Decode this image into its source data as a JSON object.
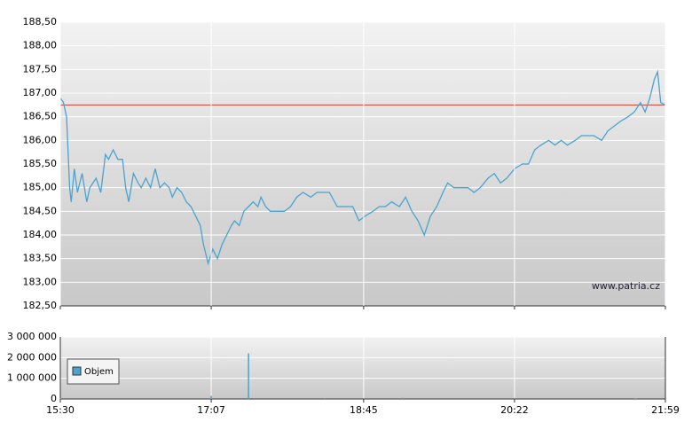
{
  "chart_data": [
    {
      "type": "line",
      "series": [
        {
          "color": "#4aa3d0",
          "x": [
            930,
            932,
            934,
            936,
            937,
            939,
            941,
            944,
            947,
            949,
            953,
            956,
            959,
            961,
            964,
            967,
            970,
            972,
            974,
            977,
            980,
            982,
            985,
            988,
            991,
            994,
            997,
            1000,
            1002,
            1005,
            1008,
            1011,
            1014,
            1017,
            1020,
            1022,
            1025,
            1028,
            1031,
            1034,
            1037,
            1040,
            1042,
            1045,
            1048,
            1051,
            1054,
            1057,
            1059,
            1062,
            1065,
            1069,
            1074,
            1078,
            1082,
            1086,
            1091,
            1095,
            1099,
            1103,
            1108,
            1114,
            1118,
            1122,
            1126,
            1131,
            1135,
            1139,
            1143,
            1148,
            1152,
            1156,
            1160,
            1164,
            1168,
            1172,
            1176,
            1179,
            1183,
            1188,
            1192,
            1196,
            1200,
            1205,
            1209,
            1213,
            1217,
            1222,
            1227,
            1231,
            1235,
            1239,
            1244,
            1248,
            1252,
            1256,
            1261,
            1265,
            1269,
            1273,
            1278,
            1282,
            1286,
            1290,
            1295,
            1299,
            1303,
            1306,
            1309,
            1312,
            1314,
            1316,
            1319
          ],
          "values": [
            186.9,
            186.8,
            186.5,
            185.0,
            184.7,
            185.4,
            184.9,
            185.3,
            184.7,
            185.0,
            185.2,
            184.9,
            185.7,
            185.6,
            185.8,
            185.6,
            185.6,
            185.0,
            184.7,
            185.3,
            185.1,
            185.0,
            185.2,
            185.0,
            185.4,
            185.0,
            185.1,
            185.0,
            184.8,
            185.0,
            184.9,
            184.7,
            184.6,
            184.4,
            184.2,
            183.8,
            183.4,
            183.7,
            183.5,
            183.8,
            184.0,
            184.2,
            184.3,
            184.2,
            184.5,
            184.6,
            184.7,
            184.6,
            184.8,
            184.6,
            184.5,
            184.5,
            184.5,
            184.6,
            184.8,
            184.9,
            184.8,
            184.9,
            184.9,
            184.9,
            184.6,
            184.6,
            184.6,
            184.3,
            184.4,
            184.5,
            184.6,
            184.6,
            184.7,
            184.6,
            184.8,
            184.5,
            184.3,
            184.0,
            184.4,
            184.6,
            184.9,
            185.1,
            185.0,
            185.0,
            185.0,
            184.9,
            185.0,
            185.2,
            185.3,
            185.1,
            185.2,
            185.4,
            185.5,
            185.5,
            185.8,
            185.9,
            186.0,
            185.9,
            186.0,
            185.9,
            186.0,
            186.1,
            186.1,
            186.1,
            186.0,
            186.2,
            186.3,
            186.4,
            186.5,
            186.6,
            186.8,
            186.6,
            186.9,
            187.3,
            187.45,
            186.8,
            186.75
          ]
        }
      ],
      "reference_line": 186.75,
      "reference_color": "#d04030",
      "xlim": [
        930,
        1319
      ],
      "ylim": [
        182.5,
        188.5
      ],
      "yticks": [
        {
          "value": 182.5,
          "label": "182,50"
        },
        {
          "value": 183,
          "label": "183,00"
        },
        {
          "value": 183.5,
          "label": "183,50"
        },
        {
          "value": 184,
          "label": "184,00"
        },
        {
          "value": 184.5,
          "label": "184,50"
        },
        {
          "value": 185,
          "label": "185,00"
        },
        {
          "value": 185.5,
          "label": "185,50"
        },
        {
          "value": 186,
          "label": "186,00"
        },
        {
          "value": 186.5,
          "label": "186,50"
        },
        {
          "value": 187,
          "label": "187,00"
        },
        {
          "value": 187.5,
          "label": "187,50"
        },
        {
          "value": 188,
          "label": "188,00"
        },
        {
          "value": 188.5,
          "label": "188,50"
        }
      ],
      "annotation": "www.patria.cz",
      "grid": true
    },
    {
      "type": "bar",
      "series": [
        {
          "name": "Objem",
          "color": "#4aa3d0",
          "x": [
            930,
            1027,
            1051,
            1100,
            1150,
            1222,
            1300
          ],
          "values": [
            50000,
            150000,
            2200000,
            40000,
            60000,
            50000,
            30000
          ]
        }
      ],
      "xlim": [
        930,
        1319
      ],
      "xticks": [
        {
          "value": 930,
          "label": "15:30"
        },
        {
          "value": 1027,
          "label": "17:07"
        },
        {
          "value": 1125,
          "label": "18:45"
        },
        {
          "value": 1222,
          "label": "20:22"
        },
        {
          "value": 1319,
          "label": "21:59"
        }
      ],
      "ylim": [
        0,
        3000000
      ],
      "yticks": [
        {
          "value": 0,
          "label": "0"
        },
        {
          "value": 1000000,
          "label": "1 000 000"
        },
        {
          "value": 2000000,
          "label": "2 000 000"
        },
        {
          "value": 3000000,
          "label": "3 000 000"
        }
      ],
      "grid": true
    }
  ]
}
